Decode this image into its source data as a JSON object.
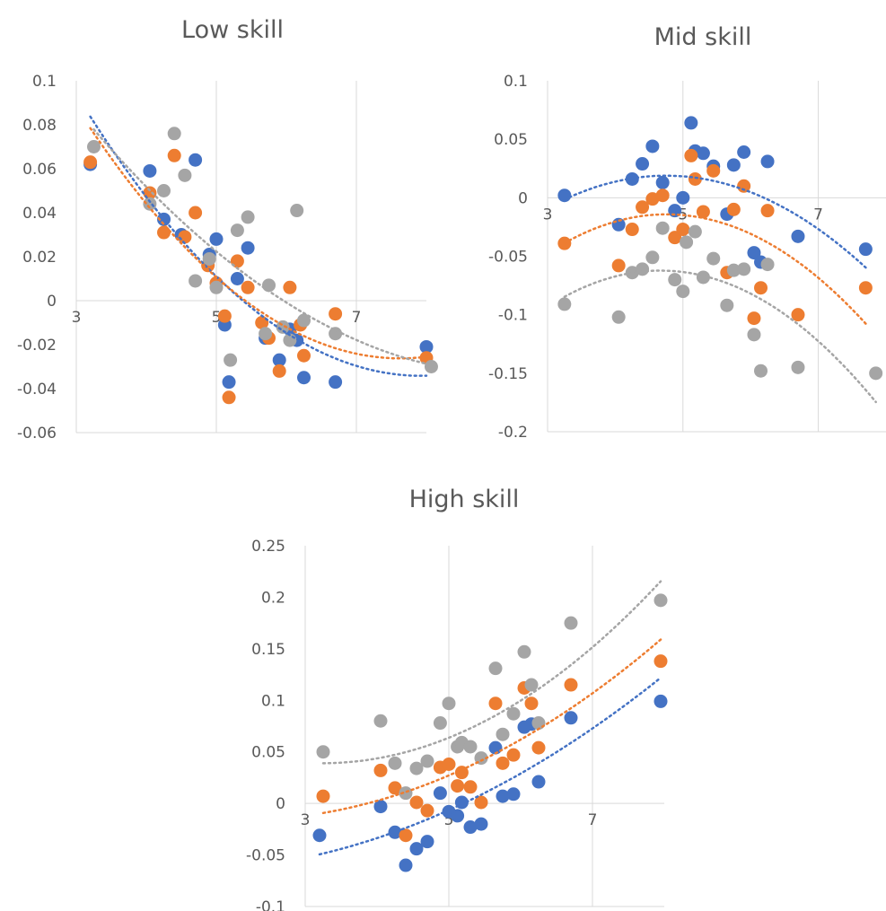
{
  "colors": {
    "blue": "#4472C4",
    "orange": "#ED7D31",
    "gray": "#A5A5A5",
    "grid": "#D9D9D9",
    "text": "#595959"
  },
  "chart_data": [
    {
      "type": "scatter",
      "title": "Low skill",
      "xlim": [
        3,
        8
      ],
      "ylim": [
        -0.06,
        0.1
      ],
      "x_ticks": [
        "3",
        "5",
        "7"
      ],
      "y_ticks": [
        "0.1",
        "0.08",
        "0.06",
        "0.04",
        "0.02",
        "0",
        "-0.02",
        "-0.04",
        "-0.06"
      ],
      "grid": true,
      "series": [
        {
          "color": "blue",
          "points": [
            [
              3.2,
              0.062
            ],
            [
              4.05,
              0.059
            ],
            [
              4.25,
              0.037
            ],
            [
              4.5,
              0.03
            ],
            [
              4.7,
              0.064
            ],
            [
              4.9,
              0.021
            ],
            [
              5.0,
              0.028
            ],
            [
              5.12,
              -0.011
            ],
            [
              5.18,
              -0.037
            ],
            [
              5.3,
              0.01
            ],
            [
              5.45,
              0.024
            ],
            [
              5.7,
              -0.017
            ],
            [
              5.9,
              -0.027
            ],
            [
              6.05,
              -0.013
            ],
            [
              6.15,
              -0.018
            ],
            [
              6.25,
              -0.035
            ],
            [
              6.7,
              -0.037
            ],
            [
              8.0,
              -0.021
            ]
          ],
          "trend": [
            0.091,
            -0.038
          ]
        },
        {
          "color": "orange",
          "points": [
            [
              3.2,
              0.063
            ],
            [
              4.05,
              0.049
            ],
            [
              4.25,
              0.031
            ],
            [
              4.4,
              0.066
            ],
            [
              4.55,
              0.029
            ],
            [
              4.7,
              0.04
            ],
            [
              4.88,
              0.016
            ],
            [
              5.0,
              0.008
            ],
            [
              5.12,
              -0.007
            ],
            [
              5.18,
              -0.044
            ],
            [
              5.3,
              0.018
            ],
            [
              5.45,
              0.006
            ],
            [
              5.65,
              -0.01
            ],
            [
              5.75,
              -0.017
            ],
            [
              5.9,
              -0.032
            ],
            [
              6.05,
              0.006
            ],
            [
              6.2,
              -0.011
            ],
            [
              6.25,
              -0.025
            ],
            [
              6.7,
              -0.006
            ],
            [
              8.0,
              -0.026
            ]
          ],
          "trend": [
            0.079,
            -0.027
          ]
        },
        {
          "color": "gray",
          "points": [
            [
              3.25,
              0.07
            ],
            [
              4.05,
              0.044
            ],
            [
              4.25,
              0.05
            ],
            [
              4.4,
              0.076
            ],
            [
              4.55,
              0.057
            ],
            [
              4.7,
              0.009
            ],
            [
              4.9,
              0.019
            ],
            [
              5.0,
              0.006
            ],
            [
              5.2,
              -0.027
            ],
            [
              5.3,
              0.032
            ],
            [
              5.45,
              0.038
            ],
            [
              5.7,
              -0.015
            ],
            [
              5.75,
              0.007
            ],
            [
              5.95,
              -0.012
            ],
            [
              6.05,
              -0.018
            ],
            [
              6.15,
              0.041
            ],
            [
              6.25,
              -0.009
            ],
            [
              6.7,
              -0.015
            ],
            [
              8.07,
              -0.03
            ]
          ],
          "trend": [
            0.077,
            -0.03
          ]
        }
      ]
    },
    {
      "type": "scatter",
      "title": "Mid skill",
      "xlim": [
        3,
        8
      ],
      "ylim": [
        -0.2,
        0.1
      ],
      "x_ticks": [
        "3",
        "5",
        "7"
      ],
      "y_ticks": [
        "0.1",
        "0.05",
        "0",
        "-0.05",
        "-0.1",
        "-0.15",
        "-0.2"
      ],
      "grid": true,
      "series": [
        {
          "color": "blue",
          "points": [
            [
              3.25,
              0.002
            ],
            [
              4.05,
              -0.023
            ],
            [
              4.25,
              0.016
            ],
            [
              4.4,
              0.029
            ],
            [
              4.55,
              0.044
            ],
            [
              4.7,
              0.013
            ],
            [
              4.88,
              -0.011
            ],
            [
              5.0,
              0.0
            ],
            [
              5.12,
              0.064
            ],
            [
              5.18,
              0.04
            ],
            [
              5.3,
              0.038
            ],
            [
              5.45,
              0.027
            ],
            [
              5.65,
              -0.014
            ],
            [
              5.75,
              0.028
            ],
            [
              5.9,
              0.039
            ],
            [
              6.05,
              -0.047
            ],
            [
              6.15,
              -0.055
            ],
            [
              6.25,
              0.031
            ],
            [
              6.7,
              -0.033
            ],
            [
              7.7,
              -0.044
            ]
          ],
          "trend": [
            0.002,
            -0.058
          ]
        },
        {
          "color": "orange",
          "points": [
            [
              3.25,
              -0.039
            ],
            [
              4.05,
              -0.058
            ],
            [
              4.25,
              -0.027
            ],
            [
              4.4,
              -0.008
            ],
            [
              4.55,
              -0.001
            ],
            [
              4.7,
              0.002
            ],
            [
              4.88,
              -0.034
            ],
            [
              5.0,
              -0.027
            ],
            [
              5.12,
              0.036
            ],
            [
              5.18,
              0.016
            ],
            [
              5.3,
              -0.012
            ],
            [
              5.45,
              0.023
            ],
            [
              5.65,
              -0.064
            ],
            [
              5.75,
              -0.01
            ],
            [
              5.9,
              0.01
            ],
            [
              6.05,
              -0.103
            ],
            [
              6.15,
              -0.077
            ],
            [
              6.25,
              -0.011
            ],
            [
              6.7,
              -0.1
            ],
            [
              7.7,
              -0.077
            ]
          ],
          "trend": [
            -0.045,
            -0.107
          ]
        },
        {
          "color": "gray",
          "points": [
            [
              3.25,
              -0.091
            ],
            [
              4.05,
              -0.102
            ],
            [
              4.25,
              -0.064
            ],
            [
              4.4,
              -0.061
            ],
            [
              4.55,
              -0.051
            ],
            [
              4.7,
              -0.026
            ],
            [
              4.88,
              -0.07
            ],
            [
              5.0,
              -0.08
            ],
            [
              5.05,
              -0.038
            ],
            [
              5.18,
              -0.029
            ],
            [
              5.3,
              -0.068
            ],
            [
              5.45,
              -0.052
            ],
            [
              5.65,
              -0.092
            ],
            [
              5.75,
              -0.062
            ],
            [
              5.9,
              -0.061
            ],
            [
              6.05,
              -0.117
            ],
            [
              6.15,
              -0.148
            ],
            [
              6.25,
              -0.057
            ],
            [
              6.7,
              -0.145
            ],
            [
              7.85,
              -0.15
            ]
          ],
          "trend": [
            -0.095,
            -0.172
          ]
        }
      ]
    },
    {
      "type": "scatter",
      "title": "High skill",
      "xlim": [
        3,
        8
      ],
      "ylim": [
        -0.1,
        0.25
      ],
      "x_ticks": [
        "3",
        "5",
        "7"
      ],
      "y_ticks": [
        "0.25",
        "0.2",
        "0.15",
        "0.1",
        "0.05",
        "0",
        "-0.05",
        "-0.1"
      ],
      "grid": true,
      "series": [
        {
          "color": "blue",
          "points": [
            [
              3.2,
              -0.031
            ],
            [
              4.05,
              -0.003
            ],
            [
              4.25,
              -0.028
            ],
            [
              4.4,
              -0.06
            ],
            [
              4.55,
              -0.044
            ],
            [
              4.7,
              -0.037
            ],
            [
              4.88,
              0.01
            ],
            [
              5.0,
              -0.008
            ],
            [
              5.12,
              -0.012
            ],
            [
              5.18,
              0.001
            ],
            [
              5.3,
              -0.023
            ],
            [
              5.45,
              -0.02
            ],
            [
              5.65,
              0.054
            ],
            [
              5.75,
              0.007
            ],
            [
              5.9,
              0.009
            ],
            [
              6.05,
              0.074
            ],
            [
              6.15,
              0.077
            ],
            [
              6.25,
              0.021
            ],
            [
              6.7,
              0.083
            ],
            [
              7.95,
              0.099
            ]
          ],
          "trend": [
            -0.05,
            0.121
          ]
        },
        {
          "color": "orange",
          "points": [
            [
              3.25,
              0.007
            ],
            [
              4.05,
              0.032
            ],
            [
              4.25,
              0.015
            ],
            [
              4.4,
              -0.031
            ],
            [
              4.55,
              0.001
            ],
            [
              4.7,
              -0.007
            ],
            [
              4.88,
              0.035
            ],
            [
              5.0,
              0.038
            ],
            [
              5.12,
              0.017
            ],
            [
              5.18,
              0.03
            ],
            [
              5.3,
              0.016
            ],
            [
              5.45,
              0.001
            ],
            [
              5.65,
              0.097
            ],
            [
              5.75,
              0.039
            ],
            [
              5.9,
              0.047
            ],
            [
              6.05,
              0.112
            ],
            [
              6.15,
              0.097
            ],
            [
              6.25,
              0.054
            ],
            [
              6.7,
              0.115
            ],
            [
              7.95,
              0.138
            ]
          ],
          "trend": [
            -0.011,
            0.158
          ]
        },
        {
          "color": "gray",
          "points": [
            [
              3.25,
              0.05
            ],
            [
              4.05,
              0.08
            ],
            [
              4.25,
              0.039
            ],
            [
              4.4,
              0.01
            ],
            [
              4.55,
              0.034
            ],
            [
              4.7,
              0.041
            ],
            [
              4.88,
              0.078
            ],
            [
              5.0,
              0.097
            ],
            [
              5.12,
              0.055
            ],
            [
              5.18,
              0.059
            ],
            [
              5.3,
              0.055
            ],
            [
              5.45,
              0.044
            ],
            [
              5.65,
              0.131
            ],
            [
              5.75,
              0.067
            ],
            [
              5.9,
              0.087
            ],
            [
              6.05,
              0.147
            ],
            [
              6.15,
              0.115
            ],
            [
              6.25,
              0.078
            ],
            [
              6.7,
              0.175
            ],
            [
              7.95,
              0.197
            ]
          ],
          "trend": [
            0.038,
            0.214
          ]
        }
      ]
    }
  ]
}
